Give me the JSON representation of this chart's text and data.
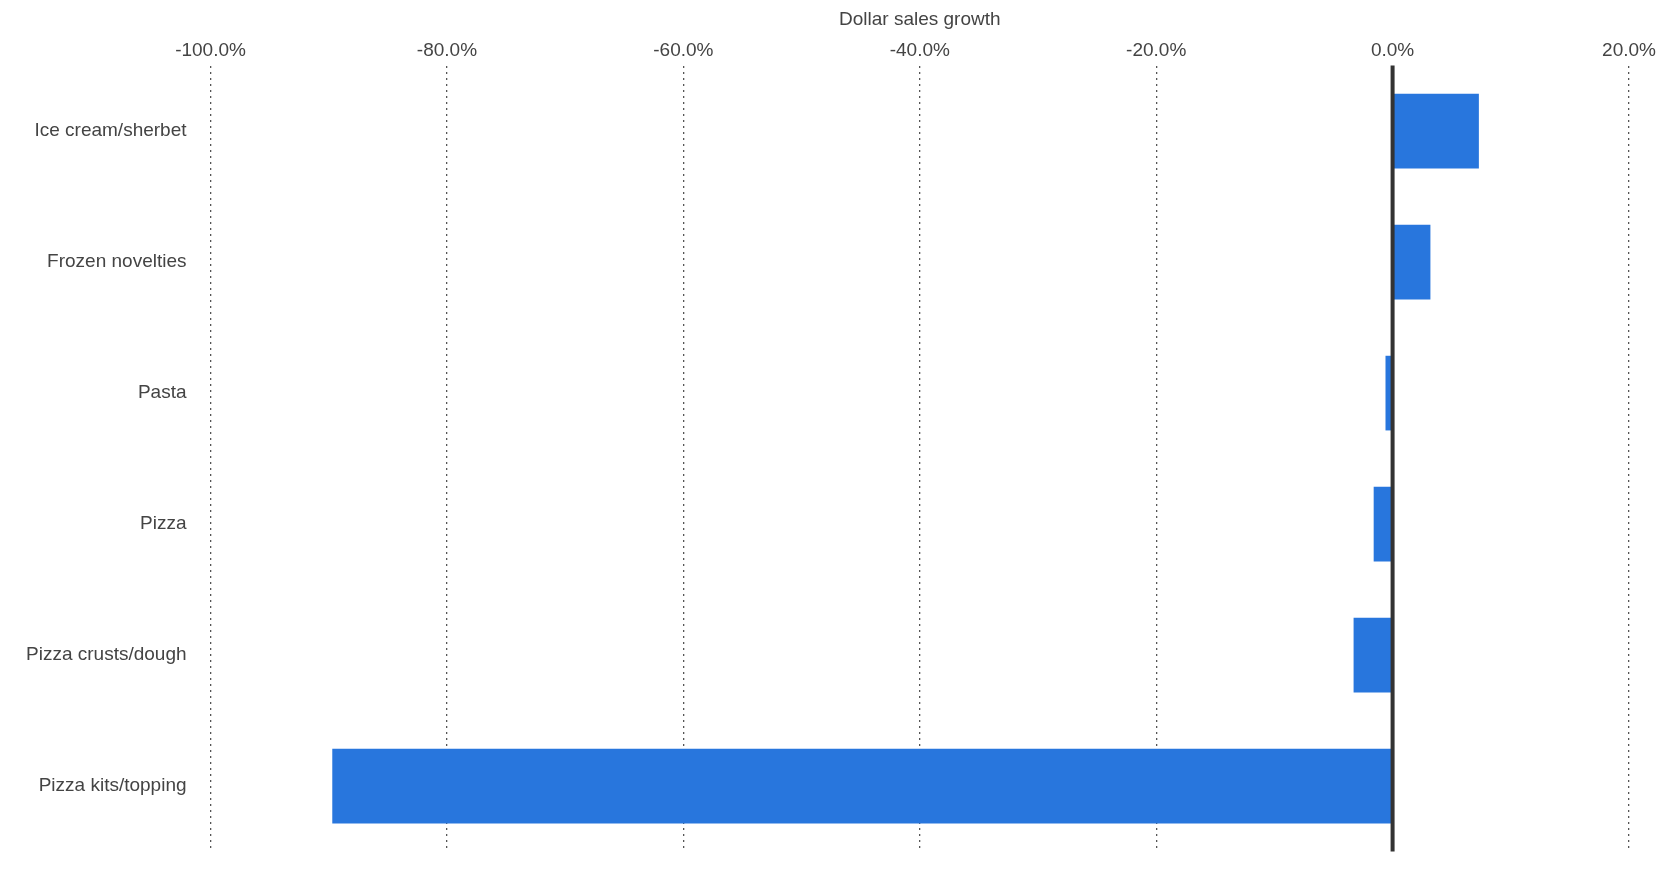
{
  "chart_data": {
    "type": "bar",
    "orientation": "horizontal",
    "xlabel": "Dollar sales growth",
    "categories": [
      "Ice cream/sherbet",
      "Frozen novelties",
      "Pasta",
      "Pizza",
      "Pizza crusts/dough",
      "Pizza kits/topping"
    ],
    "values": [
      7.3,
      3.2,
      -0.6,
      -1.6,
      -3.3,
      -89.7
    ],
    "color": "#2876dd",
    "xlim": [
      -100,
      20
    ],
    "xticks": [
      {
        "value": -100,
        "label": "-100.0%"
      },
      {
        "value": -80,
        "label": "-80.0%"
      },
      {
        "value": -60,
        "label": "-60.0%"
      },
      {
        "value": -40,
        "label": "-40.0%"
      },
      {
        "value": -20,
        "label": "-20.0%"
      },
      {
        "value": 0,
        "label": "0.0%"
      },
      {
        "value": 20,
        "label": "20.0%"
      }
    ],
    "grid": "x",
    "line_style": "dotted",
    "legend": false,
    "ref_lines": [
      {
        "axis": "x",
        "value": 0,
        "color": "#333333"
      }
    ]
  }
}
